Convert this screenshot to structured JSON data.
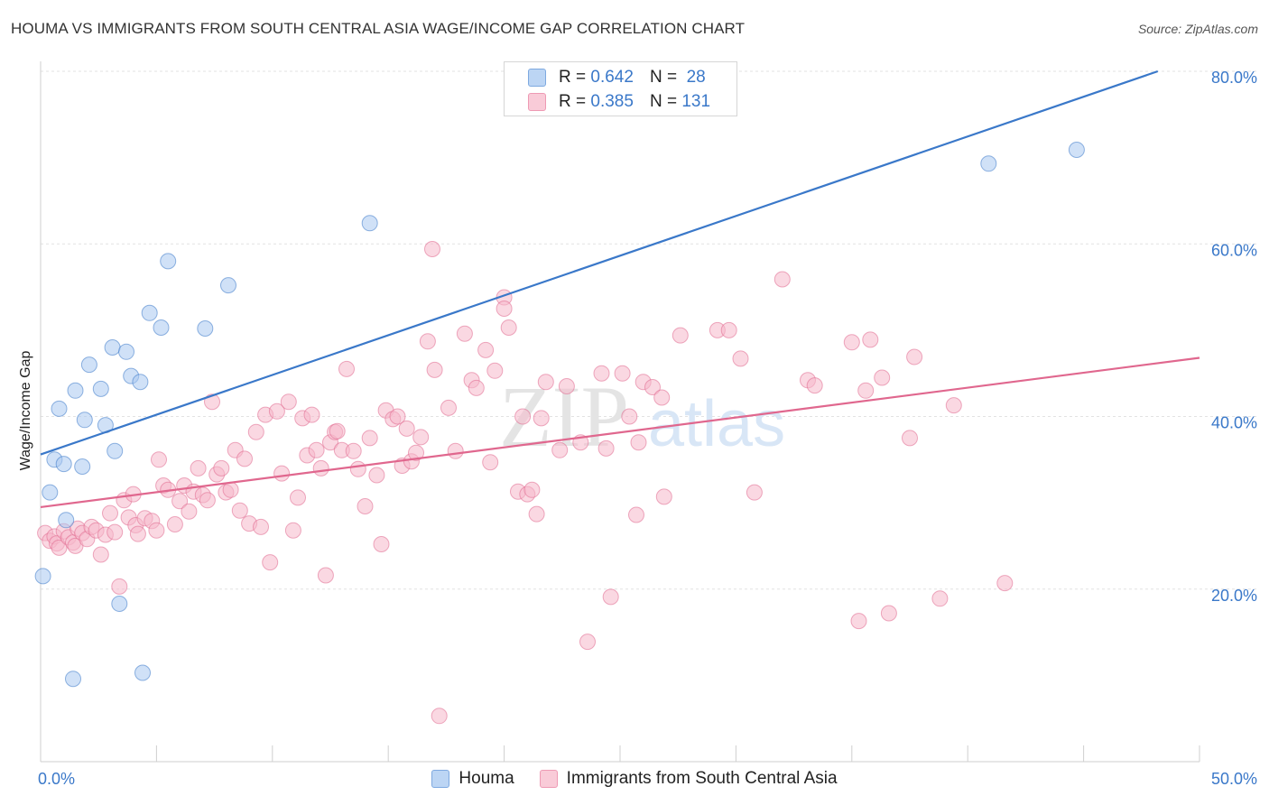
{
  "header": {
    "title": "HOUMA VS IMMIGRANTS FROM SOUTH CENTRAL ASIA WAGE/INCOME GAP CORRELATION CHART",
    "source": "Source: ZipAtlas.com"
  },
  "watermark": {
    "zip": "ZIP",
    "atlas": "atlas"
  },
  "legend": {
    "r_label": "R =",
    "n_label": "N =",
    "rows": [
      {
        "r": "0.642",
        "n": "28",
        "color": "#a9c8f0"
      },
      {
        "r": "0.385",
        "n": "131",
        "color": "#f6b8ca"
      }
    ]
  },
  "bottom_legend": [
    {
      "label": "Houma",
      "color": "#a9c8f0"
    },
    {
      "label": "Immigrants from South Central Asia",
      "color": "#f6b8ca"
    }
  ],
  "chart_data": {
    "type": "scatter",
    "title": "HOUMA VS IMMIGRANTS FROM SOUTH CENTRAL ASIA WAGE/INCOME GAP CORRELATION CHART",
    "xlabel": "",
    "ylabel": "Wage/Income Gap",
    "xlim": [
      0,
      50
    ],
    "ylim": [
      0,
      80
    ],
    "x_tick_labels": [
      "0.0%",
      "50.0%"
    ],
    "y_tick_labels": [
      {
        "value": 20,
        "label": "20.0%"
      },
      {
        "value": 40,
        "label": "40.0%"
      },
      {
        "value": 60,
        "label": "60.0%"
      },
      {
        "value": 80,
        "label": "80.0%"
      }
    ],
    "grid": true,
    "legend_position": "top-center",
    "series": [
      {
        "name": "Houma",
        "color": "#3a78c9",
        "fill": "#a9c8f0",
        "trend": [
          [
            0,
            35.6
          ],
          [
            48.2,
            80.0
          ]
        ],
        "points": [
          [
            0.1,
            21.5
          ],
          [
            0.4,
            31.2
          ],
          [
            0.6,
            35.0
          ],
          [
            0.8,
            40.9
          ],
          [
            1.0,
            34.5
          ],
          [
            1.1,
            28.0
          ],
          [
            1.4,
            9.6
          ],
          [
            1.5,
            43.0
          ],
          [
            1.8,
            34.2
          ],
          [
            1.9,
            39.6
          ],
          [
            2.1,
            46.0
          ],
          [
            2.6,
            43.2
          ],
          [
            2.8,
            39.0
          ],
          [
            3.1,
            48.0
          ],
          [
            3.2,
            36.0
          ],
          [
            3.4,
            18.3
          ],
          [
            3.7,
            47.5
          ],
          [
            3.9,
            44.7
          ],
          [
            4.3,
            44.0
          ],
          [
            4.4,
            10.3
          ],
          [
            4.7,
            52.0
          ],
          [
            5.2,
            50.3
          ],
          [
            5.5,
            58.0
          ],
          [
            7.1,
            50.2
          ],
          [
            8.1,
            55.2
          ],
          [
            14.2,
            62.4
          ],
          [
            40.9,
            69.3
          ],
          [
            44.7,
            70.9
          ]
        ]
      },
      {
        "name": "Immigrants from South Central Asia",
        "color": "#e0678e",
        "fill": "#f6b8ca",
        "trend": [
          [
            0,
            29.5
          ],
          [
            50,
            46.8
          ]
        ],
        "points": [
          [
            0.2,
            26.5
          ],
          [
            0.4,
            25.6
          ],
          [
            0.6,
            26.1
          ],
          [
            0.7,
            25.3
          ],
          [
            0.8,
            24.8
          ],
          [
            1.0,
            26.7
          ],
          [
            1.2,
            26.0
          ],
          [
            1.4,
            25.4
          ],
          [
            1.5,
            25.0
          ],
          [
            1.6,
            27.0
          ],
          [
            1.8,
            26.5
          ],
          [
            2.0,
            25.8
          ],
          [
            2.2,
            27.2
          ],
          [
            2.4,
            26.8
          ],
          [
            2.6,
            24.0
          ],
          [
            2.8,
            26.3
          ],
          [
            3.0,
            28.8
          ],
          [
            3.2,
            26.6
          ],
          [
            3.4,
            20.3
          ],
          [
            3.6,
            30.3
          ],
          [
            3.8,
            28.3
          ],
          [
            4.0,
            31.0
          ],
          [
            4.1,
            27.4
          ],
          [
            4.2,
            26.4
          ],
          [
            4.5,
            28.2
          ],
          [
            4.8,
            27.9
          ],
          [
            5.0,
            26.8
          ],
          [
            5.1,
            35.0
          ],
          [
            5.3,
            32.0
          ],
          [
            5.5,
            31.5
          ],
          [
            5.8,
            27.5
          ],
          [
            6.0,
            30.2
          ],
          [
            6.2,
            32.0
          ],
          [
            6.4,
            29.0
          ],
          [
            6.6,
            31.3
          ],
          [
            6.8,
            34.0
          ],
          [
            7.0,
            30.9
          ],
          [
            7.2,
            30.3
          ],
          [
            7.4,
            41.7
          ],
          [
            7.6,
            33.3
          ],
          [
            7.8,
            34.0
          ],
          [
            8.0,
            31.2
          ],
          [
            8.2,
            31.5
          ],
          [
            8.4,
            36.1
          ],
          [
            8.6,
            29.1
          ],
          [
            8.8,
            35.1
          ],
          [
            9.0,
            27.6
          ],
          [
            9.3,
            38.2
          ],
          [
            9.5,
            27.2
          ],
          [
            9.7,
            40.2
          ],
          [
            9.9,
            23.1
          ],
          [
            10.2,
            40.6
          ],
          [
            10.4,
            33.4
          ],
          [
            10.7,
            41.7
          ],
          [
            10.9,
            26.8
          ],
          [
            11.1,
            30.6
          ],
          [
            11.3,
            39.8
          ],
          [
            11.5,
            35.5
          ],
          [
            11.7,
            40.2
          ],
          [
            11.9,
            36.1
          ],
          [
            12.1,
            34.0
          ],
          [
            12.3,
            21.6
          ],
          [
            12.5,
            37.0
          ],
          [
            12.7,
            38.2
          ],
          [
            12.8,
            38.3
          ],
          [
            13.0,
            36.1
          ],
          [
            13.2,
            45.5
          ],
          [
            13.5,
            36.0
          ],
          [
            13.7,
            33.9
          ],
          [
            14.0,
            29.6
          ],
          [
            14.2,
            37.5
          ],
          [
            14.5,
            33.2
          ],
          [
            14.7,
            25.2
          ],
          [
            14.9,
            40.7
          ],
          [
            15.2,
            39.7
          ],
          [
            15.4,
            40.0
          ],
          [
            15.6,
            34.3
          ],
          [
            15.8,
            38.6
          ],
          [
            16.0,
            34.8
          ],
          [
            16.2,
            35.8
          ],
          [
            16.4,
            37.6
          ],
          [
            16.7,
            48.7
          ],
          [
            16.9,
            59.4
          ],
          [
            17.0,
            45.4
          ],
          [
            17.2,
            5.3
          ],
          [
            17.6,
            41.0
          ],
          [
            17.9,
            36.0
          ],
          [
            18.3,
            49.6
          ],
          [
            18.6,
            44.2
          ],
          [
            18.8,
            43.3
          ],
          [
            19.2,
            47.7
          ],
          [
            19.4,
            34.7
          ],
          [
            19.6,
            45.3
          ],
          [
            20.0,
            53.8
          ],
          [
            20.0,
            52.5
          ],
          [
            20.2,
            50.3
          ],
          [
            20.6,
            31.3
          ],
          [
            20.8,
            40.0
          ],
          [
            21.0,
            31.0
          ],
          [
            21.2,
            31.5
          ],
          [
            21.4,
            28.7
          ],
          [
            21.6,
            39.8
          ],
          [
            21.8,
            44.0
          ],
          [
            22.4,
            36.1
          ],
          [
            22.7,
            43.5
          ],
          [
            23.3,
            37.0
          ],
          [
            23.6,
            13.9
          ],
          [
            24.2,
            45.0
          ],
          [
            24.4,
            36.3
          ],
          [
            24.6,
            19.1
          ],
          [
            25.1,
            45.0
          ],
          [
            25.4,
            40.0
          ],
          [
            25.7,
            28.6
          ],
          [
            25.8,
            37.0
          ],
          [
            26.0,
            44.0
          ],
          [
            26.4,
            43.4
          ],
          [
            26.8,
            42.2
          ],
          [
            26.9,
            30.7
          ],
          [
            27.6,
            49.4
          ],
          [
            29.2,
            50.0
          ],
          [
            29.7,
            50.0
          ],
          [
            30.2,
            46.7
          ],
          [
            30.8,
            31.2
          ],
          [
            32.0,
            55.9
          ],
          [
            33.1,
            44.2
          ],
          [
            33.4,
            43.6
          ],
          [
            35.0,
            48.6
          ],
          [
            35.3,
            16.3
          ],
          [
            35.6,
            43.0
          ],
          [
            35.8,
            48.9
          ],
          [
            36.3,
            44.5
          ],
          [
            36.6,
            17.2
          ],
          [
            37.5,
            37.5
          ],
          [
            37.7,
            46.9
          ],
          [
            38.8,
            18.9
          ],
          [
            39.4,
            41.3
          ],
          [
            41.6,
            20.7
          ]
        ]
      }
    ]
  }
}
